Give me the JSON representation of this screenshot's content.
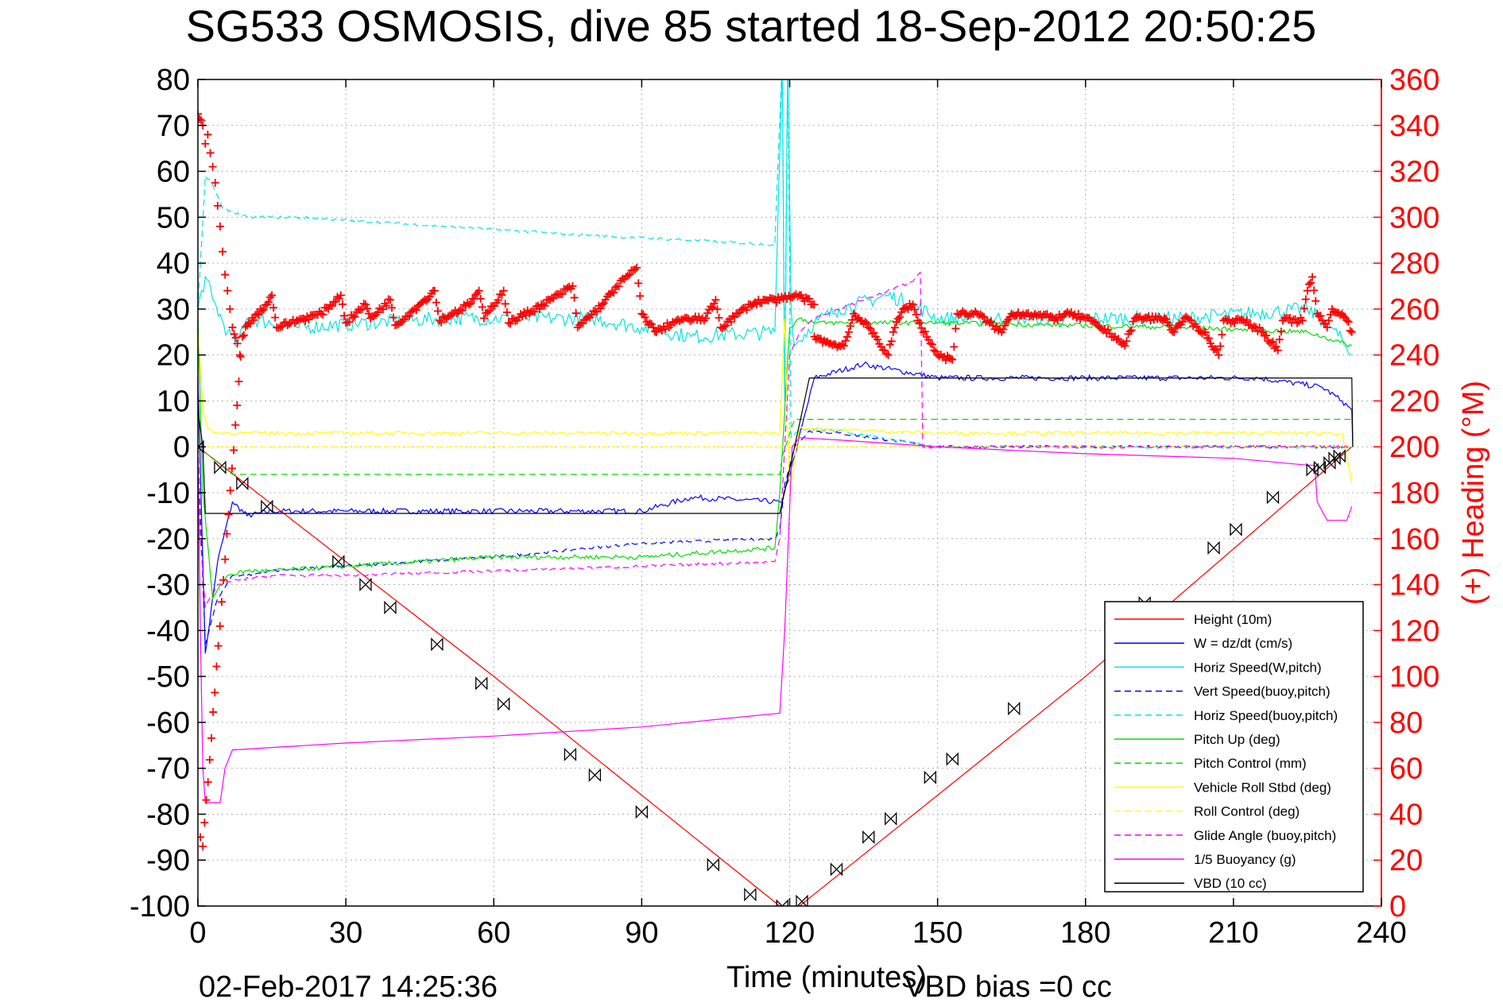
{
  "chart_data": {
    "type": "line",
    "title": "SG533 OSMOSIS, dive 85 started 18-Sep-2012 20:50:25",
    "xlabel": "Time (minutes)",
    "ylabel": "",
    "ylabel_right": "(+) Heading (°M)",
    "xlim": [
      0,
      240
    ],
    "ylim": [
      -100,
      80
    ],
    "ylim_right": [
      0,
      360
    ],
    "xticks": [
      "0",
      "30",
      "60",
      "90",
      "120",
      "150",
      "180",
      "210",
      "240"
    ],
    "yticks": [
      "80",
      "70",
      "60",
      "50",
      "40",
      "30",
      "20",
      "10",
      "0",
      "-10",
      "-20",
      "-30",
      "-40",
      "-50",
      "-60",
      "-70",
      "-80",
      "-90",
      "-100"
    ],
    "yticks_right": [
      "360",
      "340",
      "320",
      "300",
      "280",
      "260",
      "240",
      "220",
      "200",
      "180",
      "160",
      "140",
      "120",
      "100",
      "80",
      "60",
      "40",
      "20",
      "0"
    ],
    "grid": true,
    "legend_position": "bottom-right",
    "footer_date": "02-Feb-2017 14:25:36",
    "footer_bias": "VBD bias =0 cc",
    "series": [
      {
        "name": "Height (10m)",
        "color": "#ff0000",
        "style": "solid",
        "width": 1.2,
        "x": [
          0,
          60,
          118,
          122,
          180,
          234
        ],
        "y": [
          0,
          -50,
          -100,
          -100,
          -50,
          0
        ]
      },
      {
        "name": "W = dz/dt (cm/s)",
        "color": "#0000ff",
        "style": "solid",
        "width": 1.2,
        "noise": 0.6,
        "x": [
          0,
          0.5,
          1.5,
          4,
          7,
          10,
          15,
          30,
          60,
          90,
          100,
          118,
          118.5,
          121,
          125,
          135,
          150,
          180,
          215,
          228,
          232,
          234,
          234.2
        ],
        "y": [
          15,
          -5,
          -45,
          -25,
          -12,
          -15,
          -14,
          -14,
          -14,
          -14,
          -11,
          -12,
          -12,
          -2,
          15,
          18,
          15,
          15,
          15,
          13,
          10,
          8,
          0
        ]
      },
      {
        "name": "Horiz Speed(W,pitch)",
        "color": "#00e5e5",
        "style": "solid",
        "width": 1.2,
        "noise": 1.6,
        "x": [
          0,
          1.5,
          3,
          6,
          8,
          10,
          20,
          50,
          80,
          90,
          100,
          117,
          118.5,
          119,
          119.6,
          120.3,
          121,
          125,
          130,
          140,
          145,
          150,
          170,
          200,
          225,
          230,
          234
        ],
        "y": [
          30,
          37,
          32,
          25,
          22,
          28,
          26,
          28,
          28,
          26,
          24,
          25,
          85,
          10,
          85,
          30,
          22,
          27,
          30,
          33,
          31,
          28,
          28,
          28,
          30,
          26,
          20
        ]
      },
      {
        "name": "Vert Speed(buoy,pitch)",
        "color": "#0000ff",
        "style": "dashed",
        "width": 1.2,
        "noise": 0.3,
        "x": [
          0,
          0.5,
          1.5,
          4,
          7,
          10,
          15,
          30,
          60,
          90,
          117,
          118,
          119,
          121,
          124,
          130,
          150,
          234
        ],
        "y": [
          0,
          -15,
          -43,
          -33,
          -28,
          -28,
          -27,
          -26,
          -24,
          -21,
          -20,
          -18,
          -8,
          0,
          3.5,
          3,
          0,
          0
        ]
      },
      {
        "name": "Horiz Speed(buoy,pitch)",
        "color": "#00e5e5",
        "style": "dashed",
        "width": 1.2,
        "noise": 0.3,
        "x": [
          0,
          1.5,
          3,
          5,
          10,
          20,
          50,
          80,
          100,
          117,
          118.5,
          119,
          119.6,
          120.3,
          122,
          130,
          150,
          234
        ],
        "y": [
          30,
          59,
          57,
          52,
          50,
          50,
          48,
          46,
          45,
          44,
          85,
          10,
          85,
          2,
          4,
          3.5,
          0,
          0
        ]
      },
      {
        "name": "Pitch Up (deg)",
        "color": "#00dd00",
        "style": "solid",
        "width": 1.2,
        "noise": 0.5,
        "x": [
          0,
          1,
          3,
          6,
          10,
          15,
          30,
          60,
          90,
          117,
          118,
          120,
          122,
          125,
          150,
          200,
          225,
          234
        ],
        "y": [
          28,
          -10,
          -33,
          -28,
          -27,
          -27,
          -26,
          -24,
          -24,
          -22,
          -10,
          26,
          28,
          27,
          27,
          26,
          25,
          22
        ]
      },
      {
        "name": "Pitch Control (mm)",
        "color": "#00dd00",
        "style": "dashed",
        "width": 1.2,
        "x": [
          0,
          7,
          118,
          118.5,
          121,
          234
        ],
        "y": [
          0,
          -6,
          -6,
          -2,
          6,
          6
        ]
      },
      {
        "name": "Vehicle Roll Stbd (deg)",
        "color": "#ffff00",
        "style": "solid",
        "width": 1.2,
        "noise": 0.4,
        "x": [
          0,
          0.5,
          1,
          2,
          4,
          6,
          8,
          10,
          30,
          60,
          90,
          118,
          119,
          120,
          122,
          124,
          150,
          180,
          210,
          232,
          234
        ],
        "y": [
          25,
          18,
          8,
          4,
          3,
          3,
          3,
          3,
          3,
          3,
          3,
          3,
          28,
          -10,
          4,
          4,
          3,
          3,
          3,
          3,
          -8
        ]
      },
      {
        "name": "Roll Control (deg)",
        "color": "#ffff00",
        "style": "dashed",
        "width": 1.2,
        "x": [
          0,
          234
        ],
        "y": [
          0,
          0
        ]
      },
      {
        "name": "Glide Angle (buoy,pitch)",
        "color": "#ff00ff",
        "style": "dashed",
        "width": 1.2,
        "noise": 0.3,
        "x": [
          0,
          0.5,
          1.5,
          4,
          8,
          15,
          30,
          60,
          90,
          117,
          118,
          120,
          122,
          125,
          145,
          146.5,
          147,
          150,
          234
        ],
        "y": [
          0,
          -20,
          -35,
          -30,
          -29,
          -28,
          -28,
          -27,
          -26,
          -25,
          -20,
          20,
          25,
          28,
          36,
          38,
          0,
          0,
          0
        ]
      },
      {
        "name": "1/5 Buoyancy (g)",
        "color": "#ff00ff",
        "style": "solid",
        "width": 1.2,
        "x": [
          0,
          0.5,
          1,
          1.5,
          4.5,
          5.5,
          7,
          30,
          60,
          90,
          118,
          119,
          120.5,
          122,
          130,
          150,
          180,
          210,
          225,
          226.5,
          227,
          229,
          233,
          234
        ],
        "y": [
          0,
          -40,
          -70,
          -77.5,
          -77.5,
          -70,
          -66,
          -64.5,
          -63,
          -61,
          -58,
          -40,
          0,
          2,
          1.5,
          0,
          -1.5,
          -2.5,
          -4,
          -4,
          -12,
          -16,
          -16,
          -13
        ]
      },
      {
        "name": "VBD (10 cc)",
        "color": "#000000",
        "style": "solid",
        "width": 1.2,
        "x": [
          0,
          1,
          1.5,
          118,
          121,
          124,
          234,
          234.2
        ],
        "y": [
          8,
          0,
          -14.5,
          -14.5,
          0,
          15,
          15,
          0
        ]
      }
    ],
    "heading": {
      "name": "(+) Heading (°M)",
      "color": "#ff0000",
      "marker": "+",
      "points": [
        [
          0,
          345
        ],
        [
          1,
          340
        ],
        [
          1.5,
          332
        ],
        [
          2,
          336
        ],
        [
          2.5,
          328
        ],
        [
          3,
          322
        ],
        [
          3.5,
          315
        ],
        [
          4,
          305
        ],
        [
          4.5,
          296
        ],
        [
          5,
          285
        ],
        [
          5.5,
          275
        ],
        [
          6,
          268
        ],
        [
          6.5,
          260
        ],
        [
          7,
          252
        ],
        [
          8,
          245
        ],
        [
          8.5,
          240
        ],
        [
          0.5,
          30
        ],
        [
          1,
          26
        ],
        [
          9,
          248
        ],
        [
          10,
          253
        ],
        [
          12,
          258
        ],
        [
          14,
          262
        ],
        [
          15,
          266
        ],
        [
          16,
          252
        ],
        [
          20,
          255
        ],
        [
          25,
          258
        ],
        [
          29,
          266
        ],
        [
          30,
          254
        ],
        [
          34,
          262
        ],
        [
          35,
          256
        ],
        [
          39,
          264
        ],
        [
          40,
          253
        ],
        [
          45,
          262
        ],
        [
          48,
          268
        ],
        [
          49,
          255
        ],
        [
          55,
          262
        ],
        [
          57,
          268
        ],
        [
          58,
          256
        ],
        [
          62,
          268
        ],
        [
          63,
          254
        ],
        [
          70,
          262
        ],
        [
          76,
          270
        ],
        [
          77,
          252
        ],
        [
          82,
          262
        ],
        [
          85,
          270
        ],
        [
          89,
          278
        ],
        [
          90,
          258
        ],
        [
          93,
          250
        ],
        [
          97,
          255
        ],
        [
          103,
          256
        ],
        [
          105,
          264
        ],
        [
          106,
          252
        ],
        [
          112,
          262
        ],
        [
          115,
          264
        ],
        [
          118,
          264
        ],
        [
          122,
          266
        ],
        [
          125,
          262
        ],
        [
          125,
          248
        ],
        [
          128,
          245
        ],
        [
          131,
          244
        ],
        [
          132,
          250
        ],
        [
          133,
          258
        ],
        [
          136,
          252
        ],
        [
          140,
          240
        ],
        [
          141,
          250
        ],
        [
          143,
          260
        ],
        [
          145,
          262
        ],
        [
          146,
          255
        ],
        [
          150,
          240
        ],
        [
          153,
          238
        ],
        [
          154,
          258
        ],
        [
          158,
          258
        ],
        [
          163,
          250
        ],
        [
          165,
          258
        ],
        [
          168,
          258
        ],
        [
          174,
          256
        ],
        [
          176,
          258
        ],
        [
          180,
          256
        ],
        [
          186,
          248
        ],
        [
          188,
          244
        ],
        [
          190,
          256
        ],
        [
          196,
          256
        ],
        [
          198,
          250
        ],
        [
          200,
          256
        ],
        [
          204,
          250
        ],
        [
          207,
          240
        ],
        [
          208,
          255
        ],
        [
          212,
          255
        ],
        [
          216,
          250
        ],
        [
          219,
          242
        ],
        [
          220,
          255
        ],
        [
          224,
          255
        ],
        [
          225,
          268
        ],
        [
          226,
          274
        ],
        [
          227,
          258
        ],
        [
          229,
          252
        ],
        [
          230,
          260
        ],
        [
          232,
          258
        ],
        [
          233,
          255
        ],
        [
          234,
          250
        ]
      ]
    },
    "time_markers": {
      "x": [
        0,
        4.5,
        9,
        14,
        28.5,
        34,
        39,
        48.5,
        57.5,
        62,
        75.5,
        80.5,
        90,
        104.5,
        112,
        118.5,
        122.5,
        129.5,
        136,
        140.5,
        148.5,
        153,
        165.5,
        192,
        206,
        210.5,
        218,
        226,
        227.5,
        229.5,
        230.5,
        231.5
      ],
      "y": [
        0,
        -4.5,
        -8,
        -13,
        -25,
        -30,
        -35,
        -43,
        -51.5,
        -56,
        -67,
        -71.5,
        -79.5,
        -91,
        -97.5,
        -100,
        -99,
        -92,
        -85,
        -81,
        -72,
        -68,
        -57,
        -34,
        -22,
        -18,
        -11,
        -5,
        -4.5,
        -3.5,
        -2.5,
        -2
      ]
    }
  }
}
